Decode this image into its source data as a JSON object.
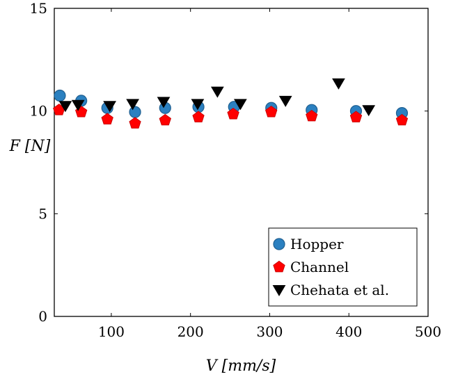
{
  "chart_data": {
    "type": "scatter",
    "xlabel": "V [mm/s]",
    "ylabel": "F [N]",
    "xlim": [
      28,
      500
    ],
    "ylim": [
      0,
      15
    ],
    "xticks": [
      100,
      200,
      300,
      400,
      500
    ],
    "yticks": [
      0,
      5,
      10,
      15
    ],
    "grid": false,
    "legend_position": "bottom-right",
    "series": [
      {
        "name": "Hopper",
        "marker": "circle",
        "color": "#2b80c0",
        "edge": "#1f5f90",
        "x": [
          35,
          62,
          95,
          130,
          168,
          210,
          255,
          302,
          353,
          409,
          467
        ],
        "y": [
          10.75,
          10.5,
          10.15,
          9.95,
          10.15,
          10.2,
          10.2,
          10.15,
          10.05,
          10.0,
          9.9
        ]
      },
      {
        "name": "Channel",
        "marker": "pentagon",
        "color": "#ff0000",
        "edge": "#cc0000",
        "x": [
          34,
          62,
          95,
          130,
          168,
          210,
          254,
          302,
          353,
          409,
          467
        ],
        "y": [
          10.05,
          9.95,
          9.6,
          9.4,
          9.55,
          9.7,
          9.85,
          9.95,
          9.75,
          9.7,
          9.55
        ]
      },
      {
        "name": "Chehata et al.",
        "marker": "triangle-down",
        "color": "#000000",
        "edge": "#000000",
        "x": [
          42,
          58,
          98,
          127,
          166,
          209,
          234,
          263,
          320,
          387,
          425
        ],
        "y": [
          10.25,
          10.3,
          10.25,
          10.35,
          10.45,
          10.35,
          10.95,
          10.35,
          10.5,
          11.35,
          10.05
        ]
      }
    ]
  }
}
